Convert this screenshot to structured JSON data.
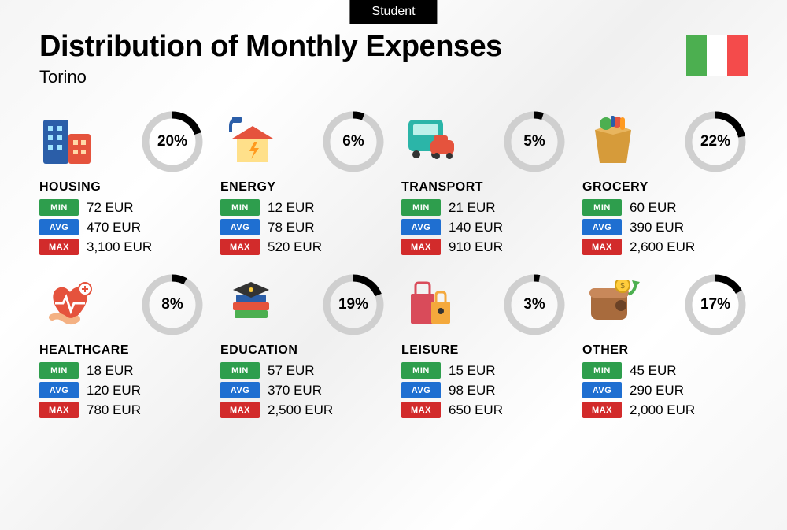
{
  "badge": "Student",
  "title": "Distribution of Monthly Expenses",
  "city": "Torino",
  "flag_colors": [
    "#4caf50",
    "#ffffff",
    "#f44b4b"
  ],
  "donut": {
    "track_color": "#cfcfcf",
    "arc_color": "#000000",
    "stroke_width": 9,
    "radius": 34
  },
  "stat_labels": {
    "min": "MIN",
    "avg": "AVG",
    "max": "MAX"
  },
  "stat_colors": {
    "min": "#2e9e4d",
    "avg": "#1f6fd1",
    "max": "#d22b2b"
  },
  "categories": [
    {
      "key": "housing",
      "name": "HOUSING",
      "pct": 20,
      "pct_label": "20%",
      "min": "72 EUR",
      "avg": "470 EUR",
      "max": "3,100 EUR"
    },
    {
      "key": "energy",
      "name": "ENERGY",
      "pct": 6,
      "pct_label": "6%",
      "min": "12 EUR",
      "avg": "78 EUR",
      "max": "520 EUR"
    },
    {
      "key": "transport",
      "name": "TRANSPORT",
      "pct": 5,
      "pct_label": "5%",
      "min": "21 EUR",
      "avg": "140 EUR",
      "max": "910 EUR"
    },
    {
      "key": "grocery",
      "name": "GROCERY",
      "pct": 22,
      "pct_label": "22%",
      "min": "60 EUR",
      "avg": "390 EUR",
      "max": "2,600 EUR"
    },
    {
      "key": "healthcare",
      "name": "HEALTHCARE",
      "pct": 8,
      "pct_label": "8%",
      "min": "18 EUR",
      "avg": "120 EUR",
      "max": "780 EUR"
    },
    {
      "key": "education",
      "name": "EDUCATION",
      "pct": 19,
      "pct_label": "19%",
      "min": "57 EUR",
      "avg": "370 EUR",
      "max": "2,500 EUR"
    },
    {
      "key": "leisure",
      "name": "LEISURE",
      "pct": 3,
      "pct_label": "3%",
      "min": "15 EUR",
      "avg": "98 EUR",
      "max": "650 EUR"
    },
    {
      "key": "other",
      "name": "OTHER",
      "pct": 17,
      "pct_label": "17%",
      "min": "45 EUR",
      "avg": "290 EUR",
      "max": "2,000 EUR"
    }
  ]
}
